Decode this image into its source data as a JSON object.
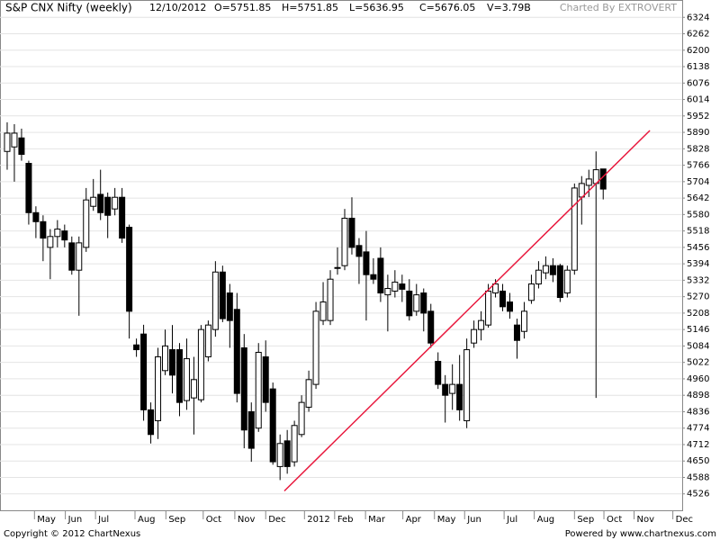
{
  "chart_data": {
    "type": "candlestick",
    "title": "S&P CNX Nifty (weekly)",
    "header": [
      "12/10/2012",
      "O=5751.85",
      "H=5751.85",
      "L=5636.95",
      "C=5676.05",
      "V=3.79B"
    ],
    "credit": "Charted By EXTROVERT",
    "footer_left": "Copyright © 2012 ChartNexus",
    "footer_right": "Powered by www.chartnexus.com",
    "x": [
      1,
      2,
      3,
      4,
      5,
      6,
      7,
      8,
      9,
      10,
      11,
      12,
      13,
      14,
      15,
      16,
      17,
      18,
      19,
      20,
      21,
      22,
      23,
      24,
      25,
      26,
      27,
      28,
      29,
      30,
      31,
      32,
      33,
      34,
      35,
      36,
      37,
      38,
      39,
      40,
      41,
      42,
      43,
      44,
      45,
      46,
      47,
      48,
      49,
      50,
      51,
      52,
      53,
      54,
      55,
      56,
      57,
      58,
      59,
      60,
      61,
      62,
      63,
      64,
      65,
      66,
      67,
      68,
      69,
      70,
      71,
      72,
      73,
      74,
      75,
      76,
      77,
      78,
      79,
      80,
      81,
      82,
      83,
      84
    ],
    "open": [
      5818,
      5835,
      5869,
      5773,
      5587,
      5553,
      5456,
      5497,
      5518,
      5473,
      5370,
      5456,
      5611,
      5656,
      5645,
      5601,
      5645,
      5532,
      5088,
      5129,
      4843,
      4802,
      4991,
      5070,
      5070,
      4878,
      4888,
      4881,
      5043,
      5146,
      5363,
      5284,
      5222,
      5077,
      4836,
      4774,
      5043,
      4922,
      4629,
      4726,
      4647,
      4750,
      4853,
      4939,
      5180,
      5180,
      5380,
      5387,
      5566,
      5463,
      5439,
      5353,
      5415,
      5277,
      5291,
      5318,
      5291,
      5215,
      5284,
      5215,
      5026,
      4939,
      4905,
      4939,
      4802,
      5095,
      5146,
      5163,
      5284,
      5291,
      5250,
      5163,
      5139,
      5256,
      5318,
      5360,
      5387,
      5387,
      5284,
      5370,
      5646,
      5690,
      5697,
      5751.85
    ],
    "high": [
      5928,
      5921,
      5904,
      5783,
      5611,
      5577,
      5525,
      5559,
      5542,
      5497,
      5497,
      5680,
      5714,
      5749,
      5663,
      5680,
      5680,
      5542,
      5112,
      5164,
      4871,
      5077,
      5146,
      5163,
      5095,
      5112,
      5043,
      5163,
      5180,
      5404,
      5387,
      5318,
      5284,
      5129,
      4871,
      5095,
      5105,
      4946,
      4750,
      4767,
      4802,
      4898,
      4991,
      5250,
      5325,
      5370,
      5456,
      5601,
      5645,
      5491,
      5518,
      5415,
      5456,
      5353,
      5370,
      5353,
      5336,
      5318,
      5301,
      5243,
      5060,
      4974,
      5015,
      5050,
      5112,
      5180,
      5215,
      5318,
      5336,
      5318,
      5284,
      5187,
      5250,
      5353,
      5404,
      5422,
      5415,
      5394,
      5387,
      5697,
      5725,
      5749,
      5818,
      5751.85
    ],
    "low": [
      5749,
      5704,
      5783,
      5542,
      5491,
      5404,
      5336,
      5456,
      5456,
      5353,
      5198,
      5439,
      5594,
      5559,
      5491,
      5577,
      5473,
      5112,
      5043,
      4802,
      4716,
      4733,
      4974,
      4905,
      4819,
      4843,
      4750,
      4871,
      5026,
      5119,
      5174,
      5077,
      4871,
      4698,
      4647,
      4760,
      4836,
      4636,
      4578,
      4602,
      4629,
      4740,
      4836,
      4922,
      5163,
      5163,
      5353,
      5370,
      5429,
      5318,
      5180,
      5318,
      5250,
      5139,
      5267,
      5250,
      5180,
      5198,
      5139,
      5077,
      4922,
      4795,
      4843,
      4802,
      4774,
      5077,
      5105,
      5153,
      5267,
      5215,
      5187,
      5036,
      5112,
      5243,
      5301,
      5336,
      5325,
      5250,
      5267,
      5353,
      5542,
      5646,
      4888,
      5636.95
    ],
    "close": [
      5887,
      5887,
      5807,
      5587,
      5553,
      5491,
      5497,
      5525,
      5484,
      5370,
      5473,
      5635,
      5645,
      5587,
      5577,
      5645,
      5491,
      5215,
      5070,
      4843,
      4750,
      5043,
      5084,
      4974,
      4871,
      5036,
      4957,
      5146,
      5163,
      5363,
      5187,
      5180,
      4905,
      4767,
      4698,
      5060,
      4871,
      4647,
      4716,
      4629,
      4784,
      4871,
      4957,
      5215,
      5250,
      5336,
      5380,
      5566,
      5456,
      5422,
      5353,
      5336,
      5284,
      5301,
      5325,
      5298,
      5198,
      5277,
      5208,
      5095,
      4939,
      4898,
      4939,
      4843,
      5070,
      5146,
      5180,
      5291,
      5318,
      5232,
      5215,
      5105,
      5215,
      5318,
      5370,
      5387,
      5353,
      5267,
      5370,
      5680,
      5697,
      5714,
      5749,
      5676.05
    ],
    "up_color": "#ffffff",
    "down_color": "#000000",
    "trendline": {
      "x": [
        39.6,
        90.5
      ],
      "y": [
        4537,
        5897
      ],
      "color": "#e8173c"
    },
    "xlim": [
      0,
      95
    ],
    "xticks": [
      {
        "value": 4.8,
        "label": "May"
      },
      {
        "value": 9.1,
        "label": "Jun"
      },
      {
        "value": 13.3,
        "label": "Jul"
      },
      {
        "value": 18.8,
        "label": "Aug"
      },
      {
        "value": 23.1,
        "label": "Sep"
      },
      {
        "value": 28.3,
        "label": "Oct"
      },
      {
        "value": 32.7,
        "label": "Nov"
      },
      {
        "value": 37,
        "label": "Dec"
      },
      {
        "value": 42.4,
        "label": "2012"
      },
      {
        "value": 46.6,
        "label": "Feb"
      },
      {
        "value": 50.9,
        "label": "Mar"
      },
      {
        "value": 56.1,
        "label": "Apr"
      },
      {
        "value": 60.5,
        "label": "May"
      },
      {
        "value": 64.7,
        "label": "Jun"
      },
      {
        "value": 70.2,
        "label": "Jul"
      },
      {
        "value": 74.4,
        "label": "Aug"
      },
      {
        "value": 80,
        "label": "Sep"
      },
      {
        "value": 84.1,
        "label": "Oct"
      },
      {
        "value": 88.3,
        "label": "Nov"
      },
      {
        "value": 93.7,
        "label": "Dec"
      }
    ],
    "ylim": [
      4464,
      6386
    ],
    "yticks": [
      4526,
      4588,
      4650,
      4712,
      4774,
      4836,
      4898,
      4960,
      5022,
      5084,
      5146,
      5208,
      5270,
      5332,
      5394,
      5456,
      5518,
      5580,
      5642,
      5704,
      5766,
      5828,
      5890,
      5952,
      6014,
      6076,
      6138,
      6200,
      6262,
      6324
    ],
    "grid": true
  }
}
